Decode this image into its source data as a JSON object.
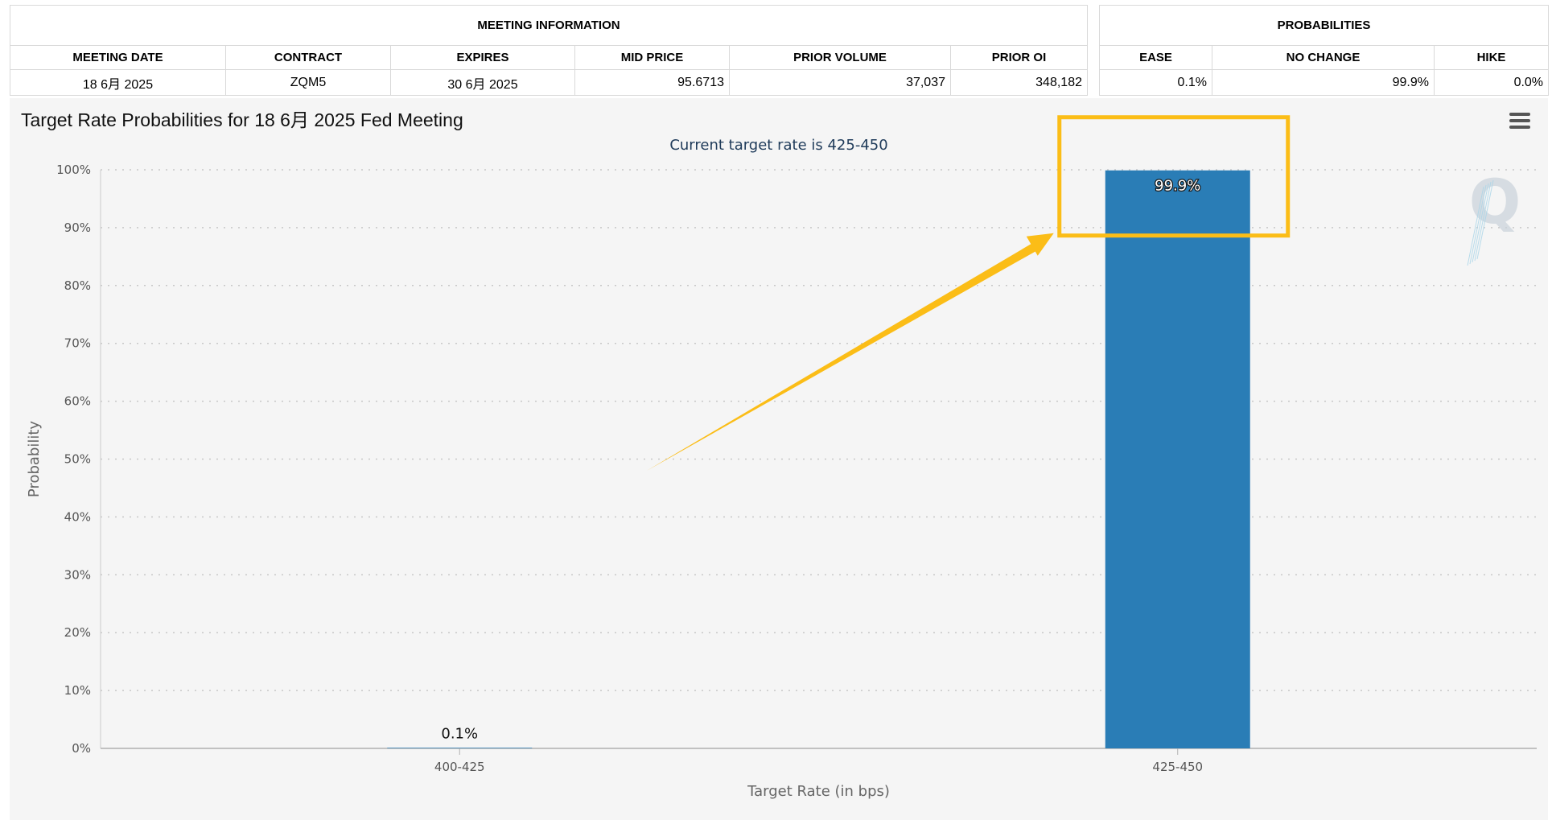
{
  "meeting_info": {
    "header": "MEETING INFORMATION",
    "columns": [
      "MEETING DATE",
      "CONTRACT",
      "EXPIRES",
      "MID PRICE",
      "PRIOR VOLUME",
      "PRIOR OI"
    ],
    "row": [
      "18 6月 2025",
      "ZQM5",
      "30 6月 2025",
      "95.6713",
      "37,037",
      "348,182"
    ]
  },
  "probabilities": {
    "header": "PROBABILITIES",
    "columns": [
      "EASE",
      "NO CHANGE",
      "HIKE"
    ],
    "row": [
      "0.1%",
      "99.9%",
      "0.0%"
    ]
  },
  "chart": {
    "title": "Target Rate Probabilities for 18 6月 2025 Fed Meeting",
    "subtitle": "Current target rate is 425-450"
  },
  "chart_data": {
    "type": "bar",
    "title": "Target Rate Probabilities for 18 6月 2025 Fed Meeting",
    "subtitle": "Current target rate is 425-450",
    "categories": [
      "400-425",
      "425-450"
    ],
    "values": [
      0.1,
      99.9
    ],
    "data_labels": [
      "0.1%",
      "99.9%"
    ],
    "xlabel": "Target Rate (in bps)",
    "ylabel": "Probability",
    "ylim": [
      0,
      100
    ],
    "yticks": [
      "0%",
      "10%",
      "20%",
      "30%",
      "40%",
      "50%",
      "60%",
      "70%",
      "80%",
      "90%",
      "100%"
    ],
    "grid": true,
    "bar_color": "#2a7db6",
    "annotation": {
      "type": "arrow-and-box",
      "color": "#fbbd17",
      "target": "425-450"
    },
    "watermark_text": "Q"
  }
}
